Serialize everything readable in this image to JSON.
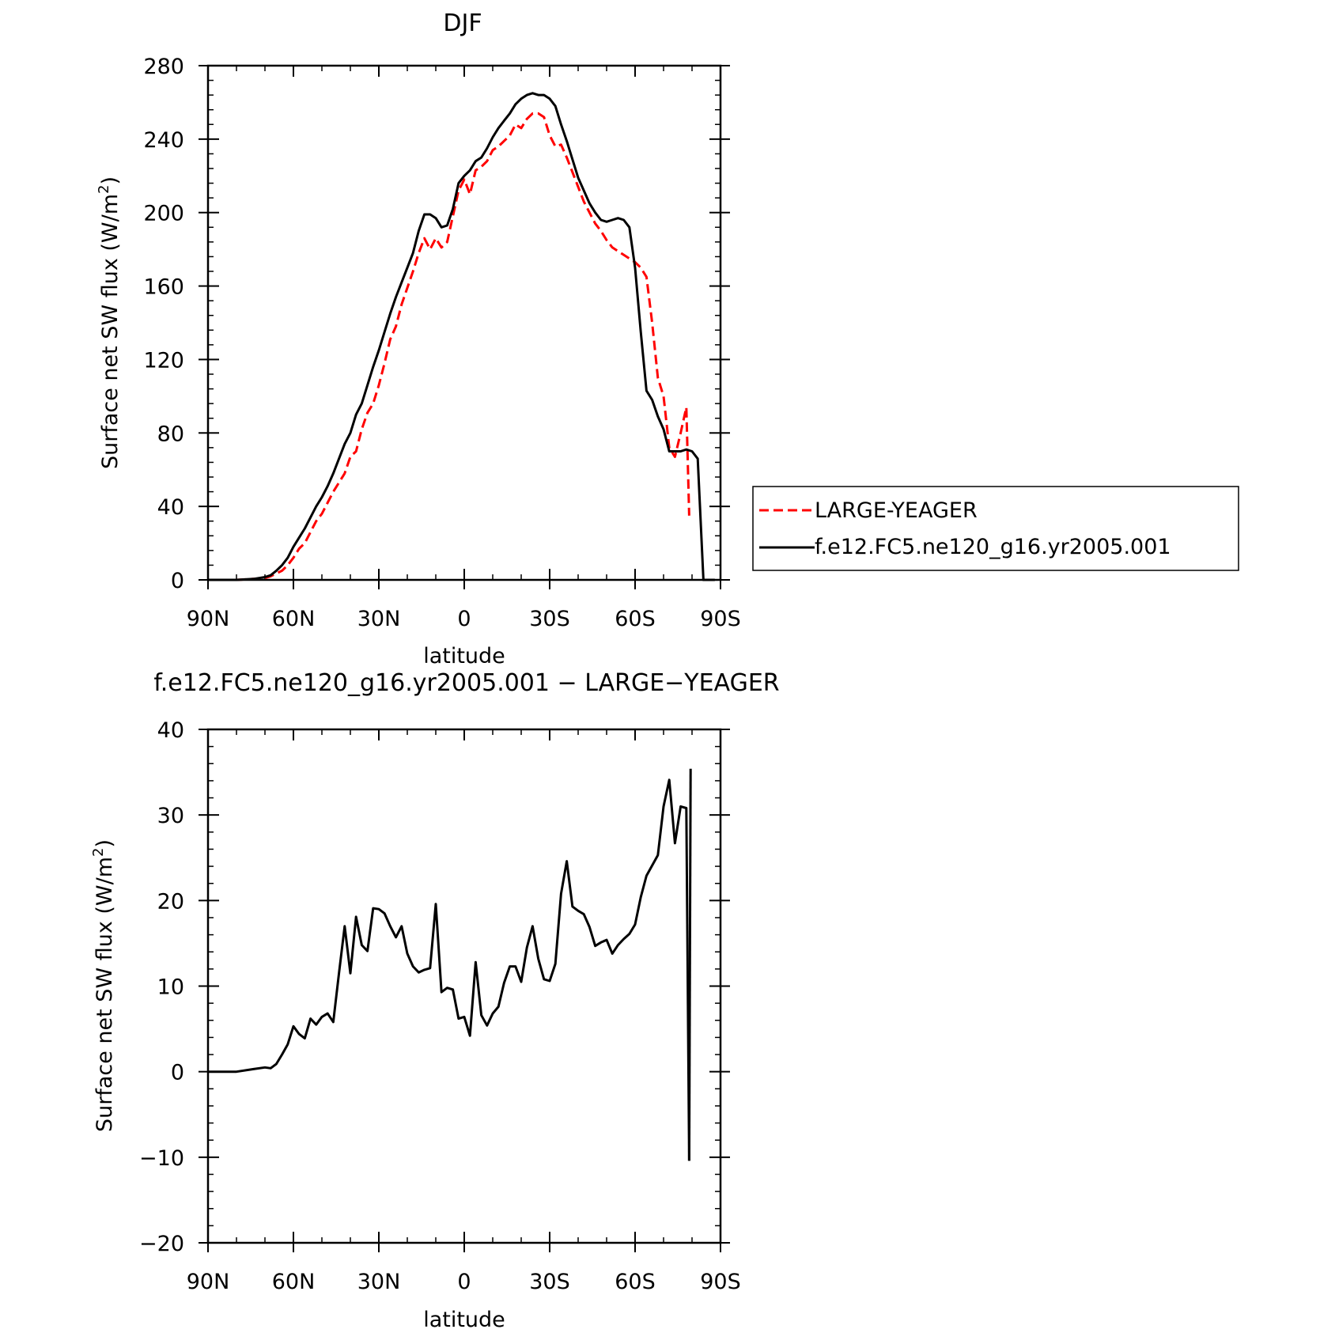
{
  "chart_data": [
    {
      "type": "line",
      "title": "DJF",
      "xlabel": "latitude",
      "ylabel": "Surface net SW flux (W/m²)",
      "ylabel_main": "Surface net SW flux (W/m",
      "ylabel_sup": "2",
      "ylabel_close": ")",
      "xlim": [
        90,
        -90
      ],
      "ylim": [
        0,
        280
      ],
      "xticks": [
        90,
        60,
        30,
        0,
        -30,
        -60,
        -90
      ],
      "xtick_labels": [
        "90N",
        "60N",
        "30N",
        "0",
        "30S",
        "60S",
        "90S"
      ],
      "yticks": [
        0,
        40,
        80,
        120,
        160,
        200,
        240,
        280
      ],
      "ytick_labels": [
        "0",
        "40",
        "80",
        "120",
        "160",
        "200",
        "240",
        "280"
      ],
      "legend": {
        "placement": "right-of-plot"
      },
      "series": [
        {
          "name": "LARGE-YEAGER",
          "color": "#ff0000",
          "style": "dashed",
          "x": [
            90,
            80,
            74,
            70,
            68,
            66,
            64,
            62,
            60,
            58,
            56,
            54,
            52,
            50,
            48,
            46,
            44,
            42,
            40,
            38,
            36,
            34,
            32,
            30,
            28,
            26,
            24,
            22,
            20,
            18,
            16,
            14,
            12,
            10,
            8,
            6,
            4,
            2,
            0,
            -2,
            -4,
            -6,
            -8,
            -10,
            -12,
            -14,
            -16,
            -18,
            -20,
            -22,
            -24,
            -26,
            -28,
            -30,
            -32,
            -34,
            -36,
            -38,
            -40,
            -42,
            -44,
            -46,
            -48,
            -50,
            -52,
            -54,
            -56,
            -58,
            -60,
            -62,
            -64,
            -66,
            -68,
            -70,
            -72,
            -74,
            -76,
            -78,
            -79
          ],
          "y": [
            0,
            0,
            0.5,
            1,
            2,
            3.5,
            5,
            8,
            12,
            17,
            20,
            26,
            32,
            36,
            42,
            48,
            53,
            58,
            67,
            70,
            82,
            91,
            96,
            106,
            118,
            131,
            138,
            150,
            159,
            168,
            178,
            186,
            180,
            186,
            181,
            184,
            198,
            212,
            218,
            210,
            223,
            225,
            228,
            234,
            236,
            239,
            242,
            248,
            246,
            251,
            254,
            254,
            252,
            242,
            236,
            237,
            230,
            222,
            214,
            206,
            200,
            194,
            190,
            185,
            181,
            179,
            177,
            175,
            173,
            170,
            165,
            140,
            110,
            100,
            72,
            67,
            80,
            94,
            35
          ]
        },
        {
          "name": "f.e12.FC5.ne120_g16.yr2005.001",
          "color": "#000000",
          "style": "solid",
          "x": [
            90,
            80,
            74,
            70,
            68,
            66,
            64,
            62,
            60,
            58,
            56,
            54,
            52,
            50,
            48,
            46,
            44,
            42,
            40,
            38,
            36,
            34,
            32,
            30,
            28,
            26,
            24,
            22,
            20,
            18,
            16,
            14,
            12,
            10,
            8,
            6,
            4,
            2,
            0,
            -2,
            -4,
            -6,
            -8,
            -10,
            -12,
            -14,
            -16,
            -18,
            -20,
            -22,
            -24,
            -26,
            -28,
            -30,
            -32,
            -34,
            -36,
            -38,
            -40,
            -42,
            -44,
            -46,
            -48,
            -50,
            -52,
            -54,
            -56,
            -58,
            -60,
            -62,
            -64,
            -66,
            -68,
            -70,
            -72,
            -74,
            -76,
            -78,
            -80,
            -82,
            -84,
            -86,
            -88
          ],
          "y": [
            0,
            0,
            0.5,
            1.5,
            2.5,
            5,
            8,
            12,
            18,
            23,
            28,
            34,
            40,
            45,
            51,
            58,
            66,
            74,
            80,
            90,
            96,
            106,
            116,
            125,
            135,
            145,
            154,
            162,
            170,
            178,
            190,
            199,
            199,
            197,
            192,
            193,
            202,
            216,
            220,
            223,
            228,
            230,
            235,
            241,
            246,
            250,
            254,
            259,
            262,
            264,
            265,
            264,
            264,
            262,
            258,
            248,
            239,
            229,
            219,
            212,
            205,
            200,
            196,
            195,
            196,
            197,
            196,
            192,
            170,
            135,
            103,
            98,
            89,
            82,
            70,
            70,
            70,
            71,
            70,
            66,
            0,
            0,
            0
          ]
        }
      ]
    },
    {
      "type": "line",
      "title": "f.e12.FC5.ne120_g16.yr2005.001 − LARGE−YEAGER",
      "xlabel": "latitude",
      "ylabel": "Surface net SW flux (W/m²)",
      "ylabel_main": "Surface net SW flux (W/m",
      "ylabel_sup": "2",
      "ylabel_close": ")",
      "xlim": [
        90,
        -90
      ],
      "ylim": [
        -20,
        40
      ],
      "xticks": [
        90,
        60,
        30,
        0,
        -30,
        -60,
        -90
      ],
      "xtick_labels": [
        "90N",
        "60N",
        "30N",
        "0",
        "30S",
        "60S",
        "90S"
      ],
      "yticks": [
        -20,
        -10,
        0,
        10,
        20,
        30,
        40
      ],
      "ytick_labels": [
        "−20",
        "−10",
        "0",
        "10",
        "20",
        "30",
        "40"
      ],
      "series": [
        {
          "color": "#000000",
          "style": "solid",
          "x": [
            90,
            80,
            74,
            70,
            68,
            66,
            64,
            62,
            60,
            58,
            56,
            54,
            52,
            50,
            48,
            46,
            44,
            42,
            40,
            38,
            36,
            34,
            32,
            30,
            28,
            26,
            24,
            22,
            20,
            18,
            16,
            14,
            12,
            10,
            8,
            6,
            4,
            2,
            0,
            -2,
            -4,
            -6,
            -8,
            -10,
            -12,
            -14,
            -16,
            -18,
            -20,
            -22,
            -24,
            -26,
            -28,
            -30,
            -32,
            -34,
            -36,
            -38,
            -40,
            -42,
            -44,
            -46,
            -48,
            -50,
            -52,
            -54,
            -56,
            -58,
            -60,
            -62,
            -64,
            -66,
            -68,
            -70,
            -72,
            -74,
            -76,
            -78,
            -79
          ],
          "y": [
            0,
            0,
            0.3,
            0.5,
            0.4,
            0.9,
            2,
            3.2,
            5.3,
            4.4,
            3.9,
            6.2,
            5.5,
            6.4,
            6.8,
            5.8,
            11.5,
            17,
            11.5,
            18.1,
            14.8,
            14.1,
            19.1,
            19,
            18.5,
            17,
            15.7,
            17,
            13.8,
            12.3,
            11.6,
            11.9,
            12.1,
            19.6,
            9.3,
            9.8,
            9.6,
            6.2,
            6.4,
            4.2,
            12.8,
            6.6,
            5.4,
            6.8,
            7.6,
            10.4,
            12.3,
            12.3,
            10.5,
            14.5,
            17,
            13.2,
            10.8,
            10.6,
            12.6,
            20.8,
            24.6,
            19.3,
            18.8,
            18.4,
            16.9,
            14.7,
            15.1,
            15.4,
            13.8,
            14.8,
            15.5,
            16.1,
            17.2,
            20.4,
            22.9,
            24.1,
            25.3,
            31,
            34.1,
            26.7,
            31,
            30.8,
            -10.4
          ]
        },
        {
          "color": "#000000",
          "style": "solid",
          "x": [
            -79,
            -79.5
          ],
          "y": [
            -10.4,
            35.4
          ]
        }
      ]
    }
  ]
}
